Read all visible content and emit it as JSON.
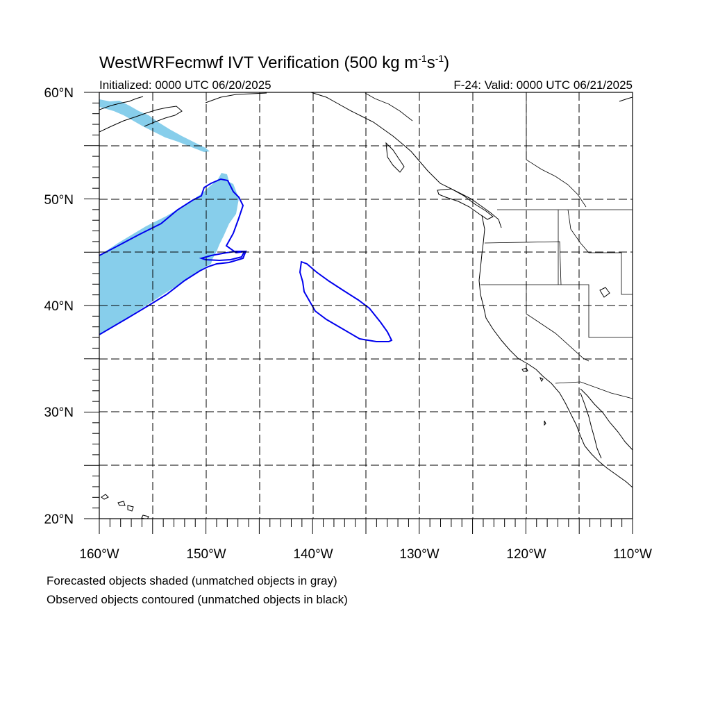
{
  "title": {
    "main_prefix": "WestWRFecmwf IVT Verification (500 kg m",
    "sup1": "-1",
    "mid": "s",
    "sup2": "-1",
    "suffix": ")"
  },
  "subtitle": {
    "left": "Initialized: 0000 UTC 06/20/2025",
    "right": "F-24: Valid: 0000 UTC 06/21/2025"
  },
  "map": {
    "projection": "cylindrical-equidistant",
    "lon_range": [
      -160,
      -110
    ],
    "lat_range": [
      20,
      60
    ],
    "grid": true,
    "lon_labels": [
      "160°W",
      "150°W",
      "140°W",
      "130°W",
      "120°W",
      "110°W"
    ],
    "lat_labels": [
      "60°N",
      "50°N",
      "40°N",
      "30°N",
      "20°N"
    ],
    "colors": {
      "forecast_fill": "#87CEEB",
      "observed_contour": "#0000EE",
      "coastline": "#000000"
    }
  },
  "footnotes": [
    "Forecasted objects shaded (unmatched objects in gray)",
    "Observed objects contoured (unmatched objects in black)"
  ]
}
